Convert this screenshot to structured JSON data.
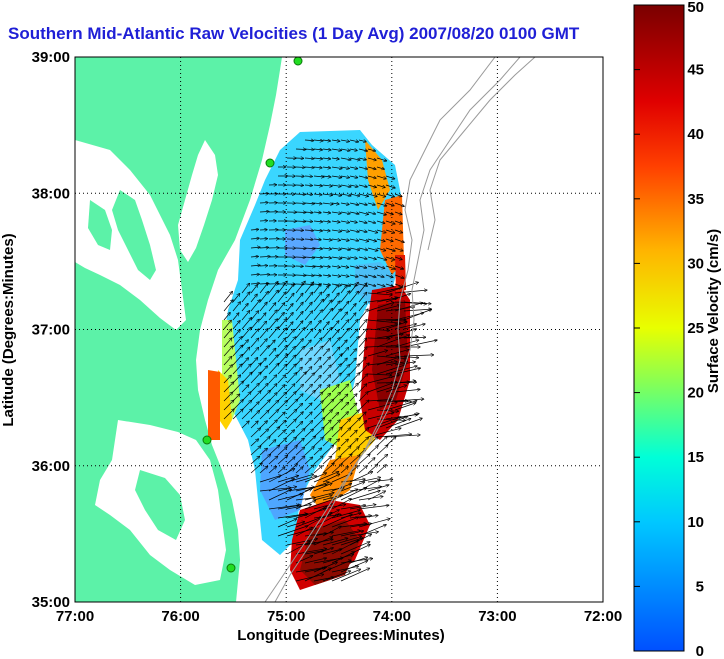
{
  "chart_data": {
    "type": "heatmap",
    "title": "Southern Mid-Atlantic Raw Velocities (1 Day Avg) 2007/08/20 0100 GMT",
    "xlabel": "Longitude (Degrees:Minutes)",
    "ylabel": "Latitude (Degrees:Minutes)",
    "x_ticks": [
      "77:00",
      "76:00",
      "75:00",
      "74:00",
      "73:00",
      "72:00"
    ],
    "y_ticks": [
      "39:00",
      "38:00",
      "37:00",
      "36:00",
      "35:00"
    ],
    "xlim": [
      -77,
      -72
    ],
    "ylim": [
      35,
      39
    ],
    "grid": true,
    "colorbar": {
      "label": "Surface Velocity (cm/s)",
      "range": [
        0,
        50
      ],
      "ticks": [
        "0",
        "5",
        "10",
        "15",
        "20",
        "25",
        "30",
        "35",
        "40",
        "45",
        "50"
      ]
    },
    "colors": {
      "title": "#1f1fd6",
      "land": "#5cf2a8",
      "coast": "#ffffff",
      "arrows": "#000000"
    },
    "speed_regions": [
      {
        "lon": -74.85,
        "lat": 37.8,
        "speed": 12
      },
      {
        "lon": -74.35,
        "lat": 37.4,
        "speed": 6
      },
      {
        "lon": -74.0,
        "lat": 36.8,
        "speed": 46
      },
      {
        "lon": -74.7,
        "lat": 36.2,
        "speed": 22
      },
      {
        "lon": -75.1,
        "lat": 35.8,
        "speed": 4
      },
      {
        "lon": -74.5,
        "lat": 35.3,
        "speed": 44
      },
      {
        "lon": -75.6,
        "lat": 36.5,
        "speed": 30
      }
    ]
  }
}
